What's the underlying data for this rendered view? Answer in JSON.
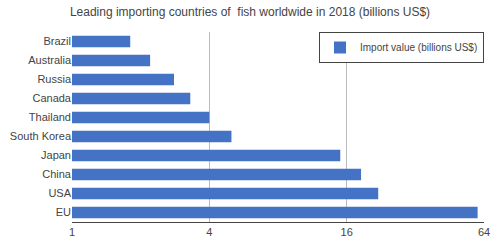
{
  "chart_data": {
    "type": "bar",
    "orientation": "horizontal",
    "title": "Leading importing countries of  fish worldwide in 2018 (billions US$)",
    "categories": [
      "EU",
      "USA",
      "China",
      "Japan",
      "South Korea",
      "Thailand",
      "Canada",
      "Russia",
      "Australia",
      "Brazil"
    ],
    "series": [
      {
        "name": "Import value (billions US$)",
        "color": "#4472C4",
        "values": [
          60.0,
          22.0,
          18.5,
          15.0,
          5.0,
          4.0,
          3.3,
          2.8,
          2.2,
          1.8
        ]
      }
    ],
    "log": "x",
    "xlim": [
      1,
      64
    ],
    "xticks": [
      1,
      4,
      16,
      64
    ],
    "grid": true,
    "legend": "upper right"
  }
}
